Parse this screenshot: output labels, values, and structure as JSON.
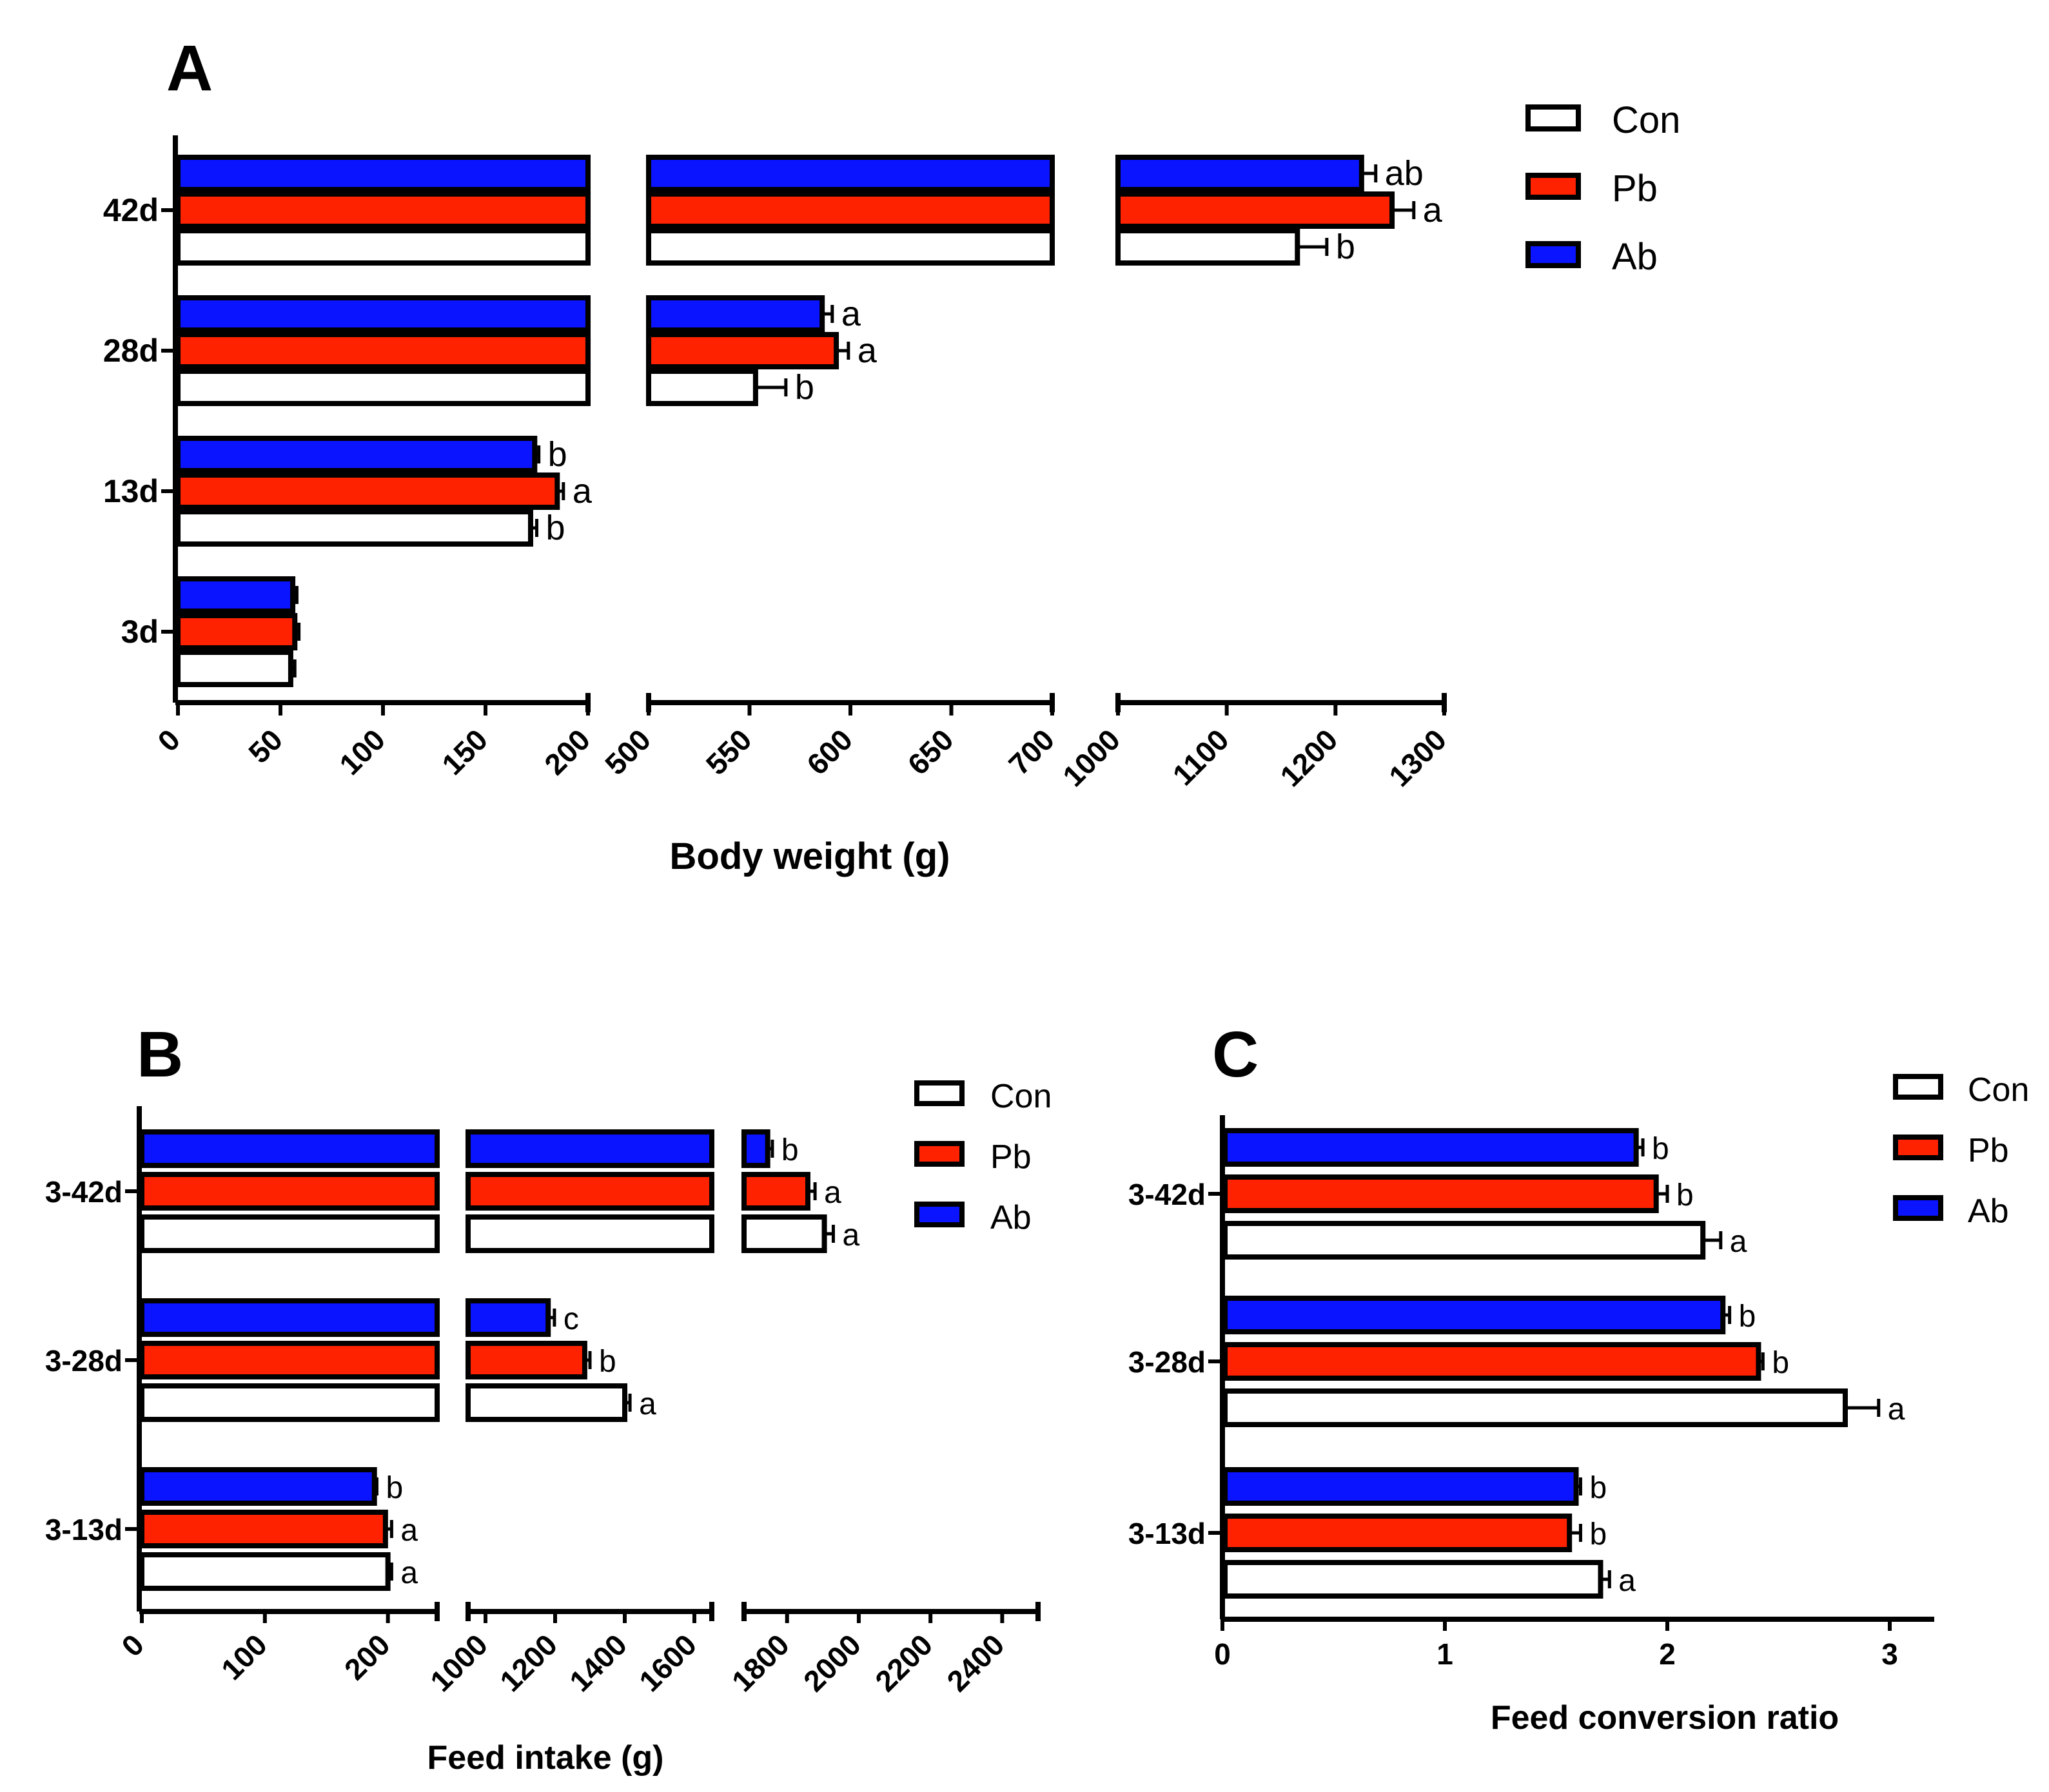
{
  "figure": {
    "panel_letters": {
      "A": "A",
      "B": "B",
      "C": "C"
    }
  },
  "legend": [
    {
      "name": "Con",
      "color": "#ffffff"
    },
    {
      "name": "Pb",
      "color": "#ff2200"
    },
    {
      "name": "Ab",
      "color": "#0a14ff"
    }
  ],
  "chart_data": [
    {
      "panel": "A",
      "type": "bar",
      "orientation": "horizontal",
      "broken_axis": true,
      "title": "",
      "xlabel": "Body weight (g)",
      "ylabel": "",
      "categories": [
        "3d",
        "13d",
        "28d",
        "42d"
      ],
      "segments": [
        {
          "range": [
            0,
            200
          ],
          "ticks": [
            0,
            50,
            100,
            150,
            200
          ],
          "tick_labels": [
            "0",
            "50",
            "100",
            "150",
            "200"
          ]
        },
        {
          "range": [
            500,
            700
          ],
          "ticks": [
            500,
            550,
            600,
            650,
            700
          ],
          "tick_labels": [
            "500",
            "550",
            "600",
            "650",
            "700"
          ]
        },
        {
          "range": [
            1000,
            1300
          ],
          "ticks": [
            1000,
            1100,
            1200,
            1300
          ],
          "tick_labels": [
            "1000",
            "1100",
            "1200",
            "1300"
          ]
        }
      ],
      "series": [
        {
          "name": "Con",
          "color": "#ffffff",
          "values": [
            55,
            172,
            553,
            1165
          ],
          "errors": [
            2,
            3,
            15,
            27
          ],
          "labels": [
            "",
            "b",
            "b",
            "b"
          ]
        },
        {
          "name": "Pb",
          "color": "#ff2200",
          "values": [
            57,
            185,
            593,
            1252
          ],
          "errors": [
            2,
            3,
            6,
            20
          ],
          "labels": [
            "",
            "a",
            "a",
            "a"
          ]
        },
        {
          "name": "Ab",
          "color": "#0a14ff",
          "values": [
            56,
            174,
            586,
            1224
          ],
          "errors": [
            2,
            2,
            5,
            13
          ],
          "labels": [
            "",
            "b",
            "a",
            "ab"
          ]
        }
      ]
    },
    {
      "panel": "B",
      "type": "bar",
      "orientation": "horizontal",
      "broken_axis": true,
      "title": "",
      "xlabel": "Feed intake (g)",
      "ylabel": "",
      "categories": [
        "3-13d",
        "3-28d",
        "3-42d"
      ],
      "segments": [
        {
          "range": [
            0,
            240
          ],
          "ticks": [
            0,
            100,
            200
          ],
          "tick_labels": [
            "0",
            "100",
            "200"
          ]
        },
        {
          "range": [
            950,
            1650
          ],
          "ticks": [
            1000,
            1200,
            1400,
            1600
          ],
          "tick_labels": [
            "1000",
            "1200",
            "1400",
            "1600"
          ]
        },
        {
          "range": [
            1680,
            2500
          ],
          "ticks": [
            1800,
            2000,
            2200,
            2400
          ],
          "tick_labels": [
            "1800",
            "2000",
            "2200",
            "2400"
          ]
        }
      ],
      "series": [
        {
          "name": "Con",
          "color": "#ffffff",
          "values": [
            200,
            1400,
            1904
          ],
          "errors": [
            3,
            15,
            25
          ],
          "labels": [
            "a",
            "a",
            "a"
          ]
        },
        {
          "name": "Pb",
          "color": "#ff2200",
          "values": [
            198,
            1285,
            1858
          ],
          "errors": [
            5,
            15,
            20
          ],
          "labels": [
            "a",
            "b",
            "a"
          ]
        },
        {
          "name": "Ab",
          "color": "#0a14ff",
          "values": [
            189,
            1180,
            1746
          ],
          "errors": [
            2,
            18,
            13
          ],
          "labels": [
            "b",
            "c",
            "b"
          ]
        }
      ]
    },
    {
      "panel": "C",
      "type": "bar",
      "orientation": "horizontal",
      "broken_axis": false,
      "title": "",
      "xlabel": "Feed conversion ratio",
      "ylabel": "",
      "categories": [
        "3-13d",
        "3-28d",
        "3-42d"
      ],
      "segments": [
        {
          "range": [
            0,
            3.2
          ],
          "ticks": [
            0,
            1,
            2,
            3
          ],
          "tick_labels": [
            "0",
            "1",
            "2",
            "3"
          ]
        }
      ],
      "series": [
        {
          "name": "Con",
          "color": "#ffffff",
          "values": [
            1.7,
            2.8,
            2.16
          ],
          "errors": [
            0.04,
            0.15,
            0.08
          ],
          "labels": [
            "a",
            "a",
            "a"
          ]
        },
        {
          "name": "Pb",
          "color": "#ff2200",
          "values": [
            1.56,
            2.41,
            1.95
          ],
          "errors": [
            0.05,
            0.02,
            0.05
          ],
          "labels": [
            "b",
            "b",
            "b"
          ]
        },
        {
          "name": "Ab",
          "color": "#0a14ff",
          "values": [
            1.59,
            2.25,
            1.86
          ],
          "errors": [
            0.02,
            0.03,
            0.03
          ],
          "labels": [
            "b",
            "b",
            "b"
          ]
        }
      ]
    }
  ]
}
